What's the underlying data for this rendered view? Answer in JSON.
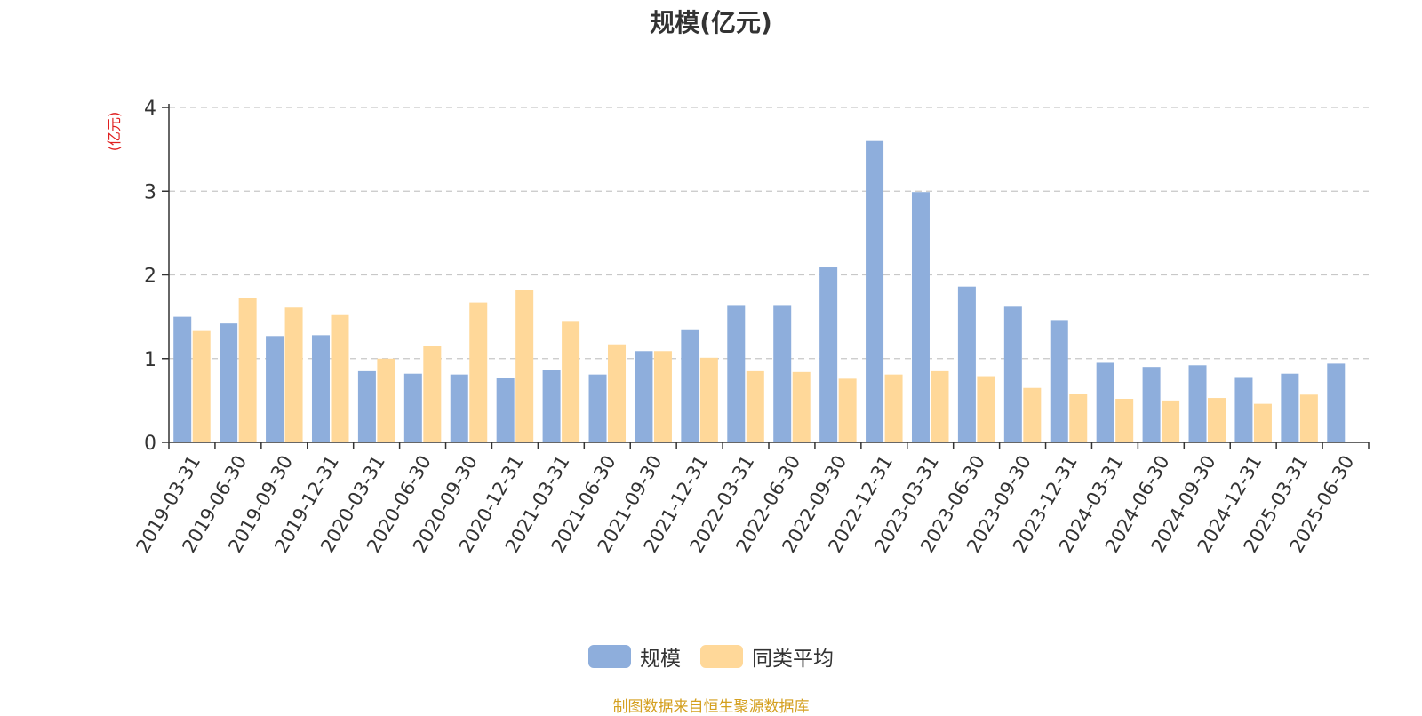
{
  "chart_data": {
    "type": "bar",
    "title": "规模(亿元)",
    "ylabel": "(亿元)",
    "ylim": [
      0,
      4
    ],
    "yticks": [
      0,
      1,
      2,
      3,
      4
    ],
    "grid": true,
    "legend_position": "bottom",
    "categories": [
      "2019-03-31",
      "2019-06-30",
      "2019-09-30",
      "2019-12-31",
      "2020-03-31",
      "2020-06-30",
      "2020-09-30",
      "2020-12-31",
      "2021-03-31",
      "2021-06-30",
      "2021-09-30",
      "2021-12-31",
      "2022-03-31",
      "2022-06-30",
      "2022-09-30",
      "2022-12-31",
      "2023-03-31",
      "2023-06-30",
      "2023-09-30",
      "2023-12-31",
      "2024-03-31",
      "2024-06-30",
      "2024-09-30",
      "2024-12-31",
      "2025-03-31",
      "2025-06-30"
    ],
    "series": [
      {
        "name": "规模",
        "color": "#8eaedc",
        "values": [
          1.5,
          1.42,
          1.27,
          1.28,
          0.85,
          0.82,
          0.81,
          0.77,
          0.86,
          0.81,
          1.09,
          1.35,
          1.64,
          1.64,
          2.09,
          3.6,
          2.99,
          1.86,
          1.62,
          1.46,
          0.95,
          0.9,
          0.92,
          0.78,
          0.82,
          0.94
        ]
      },
      {
        "name": "同类平均",
        "color": "#ffd899",
        "values": [
          1.33,
          1.72,
          1.61,
          1.52,
          1.0,
          1.15,
          1.67,
          1.82,
          1.45,
          1.17,
          1.09,
          1.01,
          0.85,
          0.84,
          0.76,
          0.81,
          0.85,
          0.79,
          0.65,
          0.58,
          0.52,
          0.5,
          0.53,
          0.46,
          0.57,
          null
        ]
      }
    ]
  },
  "source_note": "制图数据来自恒生聚源数据库"
}
